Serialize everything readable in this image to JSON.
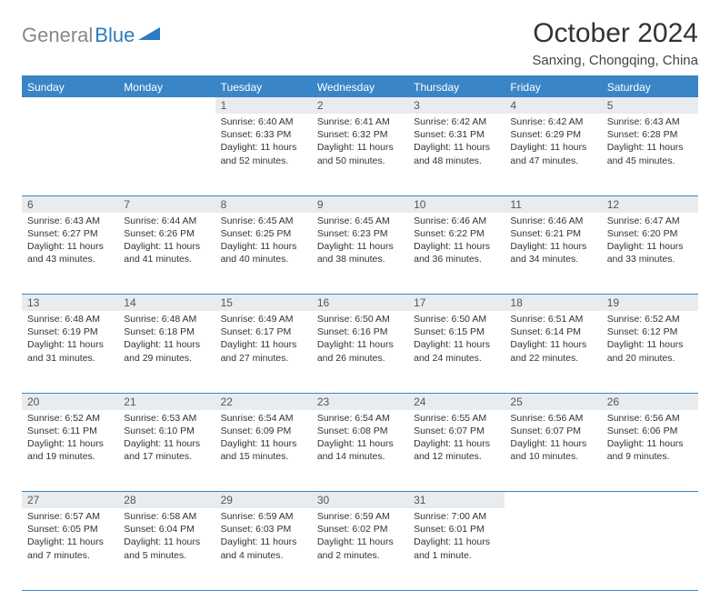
{
  "logo": {
    "gray": "General",
    "blue": "Blue"
  },
  "title": "October 2024",
  "location": "Sanxing, Chongqing, China",
  "colors": {
    "header_bg": "#3a85c6",
    "daynum_bg": "#e9ecef",
    "rule": "#3a85c6",
    "logo_gray": "#888888",
    "logo_blue": "#2b7bbf"
  },
  "weekdays": [
    "Sunday",
    "Monday",
    "Tuesday",
    "Wednesday",
    "Thursday",
    "Friday",
    "Saturday"
  ],
  "weeks": [
    [
      null,
      null,
      {
        "n": "1",
        "sr": "6:40 AM",
        "ss": "6:33 PM",
        "dl": "11 hours and 52 minutes."
      },
      {
        "n": "2",
        "sr": "6:41 AM",
        "ss": "6:32 PM",
        "dl": "11 hours and 50 minutes."
      },
      {
        "n": "3",
        "sr": "6:42 AM",
        "ss": "6:31 PM",
        "dl": "11 hours and 48 minutes."
      },
      {
        "n": "4",
        "sr": "6:42 AM",
        "ss": "6:29 PM",
        "dl": "11 hours and 47 minutes."
      },
      {
        "n": "5",
        "sr": "6:43 AM",
        "ss": "6:28 PM",
        "dl": "11 hours and 45 minutes."
      }
    ],
    [
      {
        "n": "6",
        "sr": "6:43 AM",
        "ss": "6:27 PM",
        "dl": "11 hours and 43 minutes."
      },
      {
        "n": "7",
        "sr": "6:44 AM",
        "ss": "6:26 PM",
        "dl": "11 hours and 41 minutes."
      },
      {
        "n": "8",
        "sr": "6:45 AM",
        "ss": "6:25 PM",
        "dl": "11 hours and 40 minutes."
      },
      {
        "n": "9",
        "sr": "6:45 AM",
        "ss": "6:23 PM",
        "dl": "11 hours and 38 minutes."
      },
      {
        "n": "10",
        "sr": "6:46 AM",
        "ss": "6:22 PM",
        "dl": "11 hours and 36 minutes."
      },
      {
        "n": "11",
        "sr": "6:46 AM",
        "ss": "6:21 PM",
        "dl": "11 hours and 34 minutes."
      },
      {
        "n": "12",
        "sr": "6:47 AM",
        "ss": "6:20 PM",
        "dl": "11 hours and 33 minutes."
      }
    ],
    [
      {
        "n": "13",
        "sr": "6:48 AM",
        "ss": "6:19 PM",
        "dl": "11 hours and 31 minutes."
      },
      {
        "n": "14",
        "sr": "6:48 AM",
        "ss": "6:18 PM",
        "dl": "11 hours and 29 minutes."
      },
      {
        "n": "15",
        "sr": "6:49 AM",
        "ss": "6:17 PM",
        "dl": "11 hours and 27 minutes."
      },
      {
        "n": "16",
        "sr": "6:50 AM",
        "ss": "6:16 PM",
        "dl": "11 hours and 26 minutes."
      },
      {
        "n": "17",
        "sr": "6:50 AM",
        "ss": "6:15 PM",
        "dl": "11 hours and 24 minutes."
      },
      {
        "n": "18",
        "sr": "6:51 AM",
        "ss": "6:14 PM",
        "dl": "11 hours and 22 minutes."
      },
      {
        "n": "19",
        "sr": "6:52 AM",
        "ss": "6:12 PM",
        "dl": "11 hours and 20 minutes."
      }
    ],
    [
      {
        "n": "20",
        "sr": "6:52 AM",
        "ss": "6:11 PM",
        "dl": "11 hours and 19 minutes."
      },
      {
        "n": "21",
        "sr": "6:53 AM",
        "ss": "6:10 PM",
        "dl": "11 hours and 17 minutes."
      },
      {
        "n": "22",
        "sr": "6:54 AM",
        "ss": "6:09 PM",
        "dl": "11 hours and 15 minutes."
      },
      {
        "n": "23",
        "sr": "6:54 AM",
        "ss": "6:08 PM",
        "dl": "11 hours and 14 minutes."
      },
      {
        "n": "24",
        "sr": "6:55 AM",
        "ss": "6:07 PM",
        "dl": "11 hours and 12 minutes."
      },
      {
        "n": "25",
        "sr": "6:56 AM",
        "ss": "6:07 PM",
        "dl": "11 hours and 10 minutes."
      },
      {
        "n": "26",
        "sr": "6:56 AM",
        "ss": "6:06 PM",
        "dl": "11 hours and 9 minutes."
      }
    ],
    [
      {
        "n": "27",
        "sr": "6:57 AM",
        "ss": "6:05 PM",
        "dl": "11 hours and 7 minutes."
      },
      {
        "n": "28",
        "sr": "6:58 AM",
        "ss": "6:04 PM",
        "dl": "11 hours and 5 minutes."
      },
      {
        "n": "29",
        "sr": "6:59 AM",
        "ss": "6:03 PM",
        "dl": "11 hours and 4 minutes."
      },
      {
        "n": "30",
        "sr": "6:59 AM",
        "ss": "6:02 PM",
        "dl": "11 hours and 2 minutes."
      },
      {
        "n": "31",
        "sr": "7:00 AM",
        "ss": "6:01 PM",
        "dl": "11 hours and 1 minute."
      },
      null,
      null
    ]
  ],
  "labels": {
    "sunrise": "Sunrise:",
    "sunset": "Sunset:",
    "daylight": "Daylight:"
  }
}
